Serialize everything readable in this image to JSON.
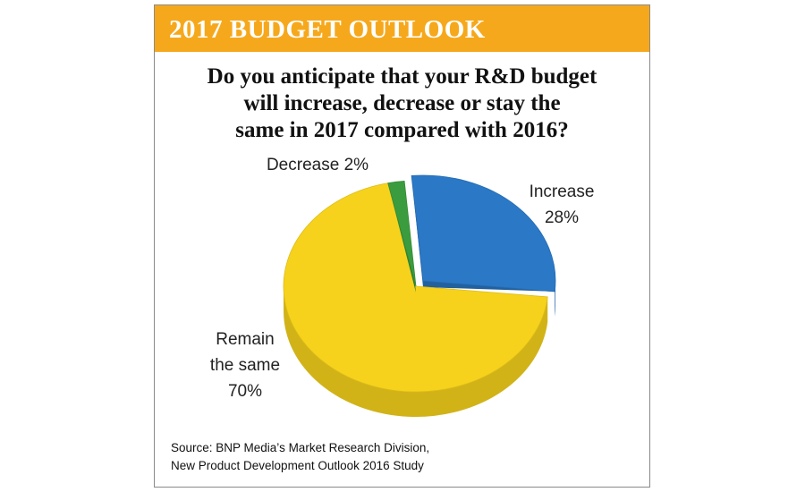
{
  "chart_data": {
    "type": "pie",
    "header": "2017 BUDGET OUTLOOK",
    "title": [
      "Do you anticipate that your R&D budget",
      "will increase, decrease or stay the",
      "same in 2017 compared with 2016?"
    ],
    "categories": [
      "Increase",
      "Remain the same",
      "Decrease"
    ],
    "values": [
      28,
      70,
      2
    ],
    "value_labels": [
      "28%",
      "70%",
      "2%"
    ],
    "colors": [
      "#2a78c6",
      "#f6d21c",
      "#3a9c3e"
    ],
    "source": [
      "Source: BNP Media’s Market Research Division,",
      "New Product Development Outlook 2016 Study"
    ]
  }
}
